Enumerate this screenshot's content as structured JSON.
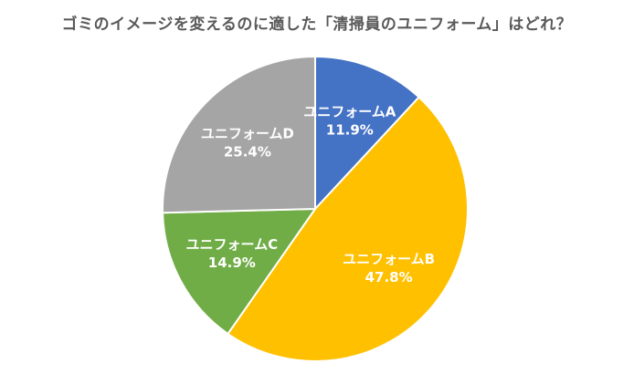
{
  "chart_data": {
    "type": "pie",
    "title": "ゴミのイメージを変えるのに適した「清掃員のユニフォーム」はどれ？",
    "categories": [
      "ユニフォームA",
      "ユニフォームB",
      "ユニフォームC",
      "ユニフォームD"
    ],
    "values": [
      11.9,
      47.8,
      14.9,
      25.4
    ],
    "value_labels": [
      "11.9%",
      "47.8%",
      "14.9%",
      "25.4%"
    ],
    "colors": [
      "#4472C4",
      "#FFC000",
      "#70AD47",
      "#A5A5A5"
    ],
    "start_angle": "12 o'clock, clockwise",
    "legend": "none"
  }
}
